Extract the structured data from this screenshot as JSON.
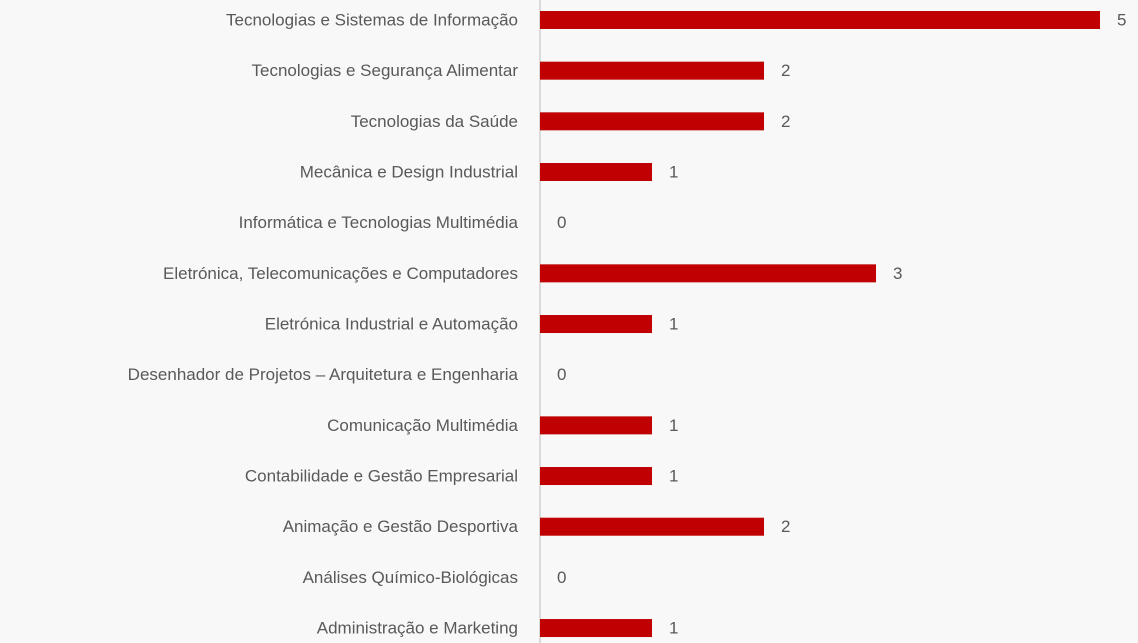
{
  "chart_data": {
    "type": "bar",
    "orientation": "horizontal",
    "categories": [
      "Tecnologias e Sistemas de Informação",
      "Tecnologias e Segurança Alimentar",
      "Tecnologias da Saúde",
      "Mecânica e Design Industrial",
      "Informática e Tecnologias Multimédia",
      "Eletrónica, Telecomunicações e Computadores",
      "Eletrónica Industrial e Automação",
      "Desenhador de Projetos – Arquitetura e Engenharia",
      "Comunicação Multimédia",
      "Contabilidade e Gestão Empresarial",
      "Animação e Gestão Desportiva",
      "Análises Químico-Biológicas",
      "Administração e Marketing"
    ],
    "values": [
      5,
      2,
      2,
      1,
      0,
      3,
      1,
      0,
      1,
      1,
      2,
      0,
      1
    ],
    "color": "#c00000",
    "xlim": [
      0,
      5
    ]
  }
}
